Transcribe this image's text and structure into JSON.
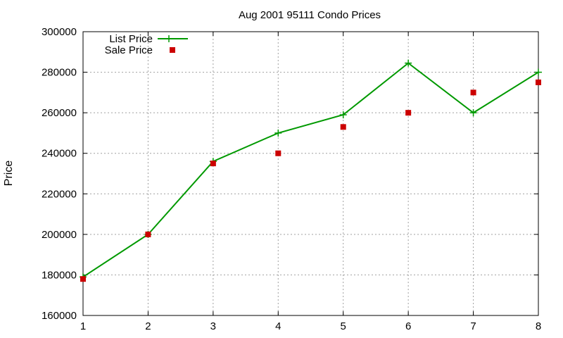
{
  "chart_data": {
    "type": "line",
    "title": "Aug 2001 95111 Condo Prices",
    "xlabel": "",
    "ylabel": "Price",
    "x": [
      1,
      2,
      3,
      4,
      5,
      6,
      7,
      8
    ],
    "xlim": [
      1,
      8
    ],
    "ylim": [
      160000,
      300000
    ],
    "xticks": [
      "1",
      "2",
      "3",
      "4",
      "5",
      "6",
      "7",
      "8"
    ],
    "yticks": [
      "160000",
      "180000",
      "200000",
      "220000",
      "240000",
      "260000",
      "280000",
      "300000"
    ],
    "grid": true,
    "legend_position": "top-left",
    "series": [
      {
        "name": "List Price",
        "style": "line+cross",
        "color": "#009900",
        "values": [
          179000,
          200000,
          236000,
          250000,
          259000,
          284500,
          260000,
          280000
        ]
      },
      {
        "name": "Sale Price",
        "style": "square-marker",
        "color": "#cc0000",
        "values": [
          178000,
          200000,
          235000,
          240000,
          253000,
          260000,
          270000,
          275000
        ]
      }
    ]
  }
}
